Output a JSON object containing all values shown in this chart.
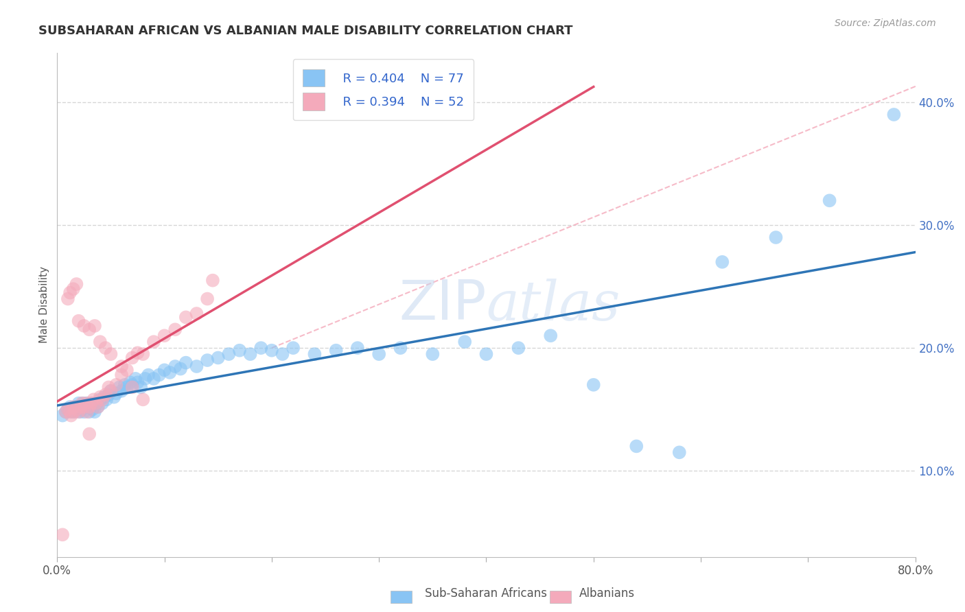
{
  "title": "SUBSAHARAN AFRICAN VS ALBANIAN MALE DISABILITY CORRELATION CHART",
  "source": "Source: ZipAtlas.com",
  "ylabel_label": "Male Disability",
  "xmin": 0.0,
  "xmax": 0.8,
  "ymin": 0.03,
  "ymax": 0.44,
  "yticks": [
    0.1,
    0.2,
    0.3,
    0.4
  ],
  "ytick_labels": [
    "10.0%",
    "20.0%",
    "30.0%",
    "40.0%"
  ],
  "xticks": [
    0.0,
    0.1,
    0.2,
    0.3,
    0.4,
    0.5,
    0.6,
    0.7,
    0.8
  ],
  "xtick_labels": [
    "0.0%",
    "",
    "",
    "",
    "",
    "",
    "",
    "",
    "80.0%"
  ],
  "blue_color": "#89C4F4",
  "pink_color": "#F4AABB",
  "blue_line_color": "#2E75B6",
  "pink_line_color": "#E05070",
  "diag_line_color": "#F4AABB",
  "legend_label_blue": "Sub-Saharan Africans",
  "legend_label_pink": "Albanians",
  "legend_R_blue": "R = 0.404",
  "legend_N_blue": "N = 77",
  "legend_R_pink": "R = 0.394",
  "legend_N_pink": "N = 52",
  "blue_scatter_x": [
    0.005,
    0.008,
    0.01,
    0.012,
    0.013,
    0.015,
    0.016,
    0.017,
    0.018,
    0.02,
    0.021,
    0.022,
    0.023,
    0.024,
    0.025,
    0.026,
    0.028,
    0.03,
    0.031,
    0.032,
    0.033,
    0.035,
    0.037,
    0.038,
    0.04,
    0.042,
    0.044,
    0.046,
    0.048,
    0.05,
    0.053,
    0.055,
    0.058,
    0.06,
    0.063,
    0.065,
    0.068,
    0.07,
    0.073,
    0.075,
    0.078,
    0.082,
    0.085,
    0.09,
    0.095,
    0.1,
    0.105,
    0.11,
    0.115,
    0.12,
    0.13,
    0.14,
    0.15,
    0.16,
    0.17,
    0.18,
    0.19,
    0.2,
    0.21,
    0.22,
    0.24,
    0.26,
    0.28,
    0.3,
    0.32,
    0.35,
    0.38,
    0.4,
    0.43,
    0.46,
    0.5,
    0.54,
    0.58,
    0.62,
    0.67,
    0.72,
    0.78
  ],
  "blue_scatter_y": [
    0.145,
    0.148,
    0.15,
    0.152,
    0.148,
    0.15,
    0.148,
    0.152,
    0.15,
    0.155,
    0.148,
    0.152,
    0.15,
    0.155,
    0.148,
    0.152,
    0.155,
    0.148,
    0.152,
    0.155,
    0.15,
    0.148,
    0.155,
    0.152,
    0.158,
    0.155,
    0.16,
    0.158,
    0.162,
    0.165,
    0.16,
    0.163,
    0.168,
    0.165,
    0.17,
    0.168,
    0.172,
    0.17,
    0.175,
    0.172,
    0.168,
    0.175,
    0.178,
    0.175,
    0.178,
    0.182,
    0.18,
    0.185,
    0.183,
    0.188,
    0.185,
    0.19,
    0.192,
    0.195,
    0.198,
    0.195,
    0.2,
    0.198,
    0.195,
    0.2,
    0.195,
    0.198,
    0.2,
    0.195,
    0.2,
    0.195,
    0.205,
    0.195,
    0.2,
    0.21,
    0.17,
    0.12,
    0.115,
    0.27,
    0.29,
    0.32,
    0.39
  ],
  "pink_scatter_x": [
    0.005,
    0.008,
    0.01,
    0.012,
    0.013,
    0.015,
    0.016,
    0.018,
    0.02,
    0.022,
    0.023,
    0.025,
    0.027,
    0.028,
    0.03,
    0.032,
    0.034,
    0.036,
    0.038,
    0.04,
    0.042,
    0.045,
    0.048,
    0.05,
    0.055,
    0.06,
    0.065,
    0.07,
    0.075,
    0.08,
    0.09,
    0.1,
    0.11,
    0.12,
    0.13,
    0.14,
    0.145,
    0.01,
    0.015,
    0.02,
    0.025,
    0.03,
    0.035,
    0.04,
    0.045,
    0.05,
    0.06,
    0.07,
    0.08,
    0.03,
    0.012,
    0.018
  ],
  "pink_scatter_y": [
    0.048,
    0.148,
    0.15,
    0.148,
    0.145,
    0.152,
    0.148,
    0.15,
    0.148,
    0.152,
    0.155,
    0.152,
    0.155,
    0.148,
    0.152,
    0.155,
    0.158,
    0.155,
    0.152,
    0.16,
    0.158,
    0.162,
    0.168,
    0.165,
    0.17,
    0.178,
    0.182,
    0.192,
    0.196,
    0.195,
    0.205,
    0.21,
    0.215,
    0.225,
    0.228,
    0.24,
    0.255,
    0.24,
    0.248,
    0.222,
    0.218,
    0.215,
    0.218,
    0.205,
    0.2,
    0.195,
    0.185,
    0.168,
    0.158,
    0.13,
    0.245,
    0.252
  ],
  "background_color": "#FFFFFF",
  "grid_color": "#CCCCCC"
}
